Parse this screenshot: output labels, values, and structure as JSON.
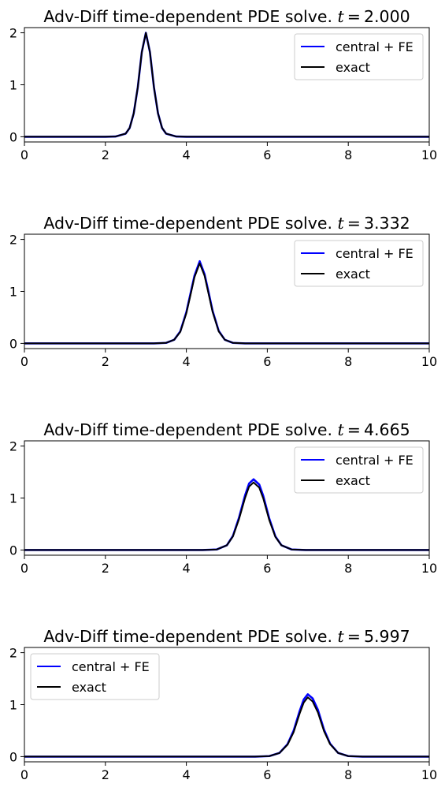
{
  "colors": {
    "numerical": "#0000ff",
    "exact": "#000000",
    "background": "#ffffff",
    "legend_border": "#cccccc"
  },
  "chart_data": [
    {
      "type": "line",
      "title": "Adv-Diff time-dependent PDE solve. t = 2.000",
      "title_prefix": "Adv-Diff time-dependent PDE solve.",
      "title_var": "t",
      "title_eq": "=",
      "title_value": "2.000",
      "xlim": [
        0,
        10
      ],
      "ylim": [
        -0.1,
        2.1
      ],
      "xticks": [
        0,
        2,
        4,
        6,
        8,
        10
      ],
      "xtick_labels": [
        "0",
        "2",
        "4",
        "6",
        "8",
        "10"
      ],
      "yticks": [
        0,
        1,
        2
      ],
      "ytick_labels": [
        "0",
        "1",
        "2"
      ],
      "legend_position": "upper right",
      "series": [
        {
          "name": "central + FE",
          "color": "#0000ff",
          "x": [
            0,
            2.0,
            2.25,
            2.5,
            2.6,
            2.7,
            2.8,
            2.9,
            3.0,
            3.1,
            3.2,
            3.3,
            3.4,
            3.5,
            3.75,
            4.0,
            10
          ],
          "y": [
            0,
            0.0,
            0.005,
            0.06,
            0.17,
            0.45,
            0.95,
            1.63,
            2.0,
            1.63,
            0.95,
            0.45,
            0.17,
            0.06,
            0.005,
            0.0,
            0
          ]
        },
        {
          "name": "exact",
          "color": "#000000",
          "x": [
            0,
            2.0,
            2.25,
            2.5,
            2.6,
            2.7,
            2.8,
            2.9,
            3.0,
            3.1,
            3.2,
            3.3,
            3.4,
            3.5,
            3.75,
            4.0,
            10
          ],
          "y": [
            0,
            0.0,
            0.005,
            0.06,
            0.17,
            0.45,
            0.95,
            1.63,
            2.0,
            1.63,
            0.95,
            0.45,
            0.17,
            0.06,
            0.005,
            0.0,
            0
          ]
        }
      ]
    },
    {
      "type": "line",
      "title": "Adv-Diff time-dependent PDE solve. t = 3.332",
      "title_prefix": "Adv-Diff time-dependent PDE solve.",
      "title_var": "t",
      "title_eq": "=",
      "title_value": "3.332",
      "xlim": [
        0,
        10
      ],
      "ylim": [
        -0.1,
        2.1
      ],
      "xticks": [
        0,
        2,
        4,
        6,
        8,
        10
      ],
      "xtick_labels": [
        "0",
        "2",
        "4",
        "6",
        "8",
        "10"
      ],
      "yticks": [
        0,
        1,
        2
      ],
      "ytick_labels": [
        "0",
        "1",
        "2"
      ],
      "legend_position": "upper right",
      "series": [
        {
          "name": "central + FE",
          "color": "#0000ff",
          "x": [
            0,
            3.2,
            3.5,
            3.7,
            3.85,
            4.0,
            4.1,
            4.2,
            4.33,
            4.45,
            4.55,
            4.65,
            4.8,
            4.95,
            5.15,
            5.45,
            10
          ],
          "y": [
            0,
            0.0,
            0.01,
            0.07,
            0.23,
            0.6,
            0.95,
            1.3,
            1.58,
            1.33,
            0.98,
            0.62,
            0.24,
            0.07,
            0.01,
            0.0,
            0
          ]
        },
        {
          "name": "exact",
          "color": "#000000",
          "x": [
            0,
            3.2,
            3.5,
            3.7,
            3.85,
            4.0,
            4.1,
            4.2,
            4.33,
            4.45,
            4.55,
            4.65,
            4.8,
            4.95,
            5.15,
            5.45,
            10
          ],
          "y": [
            0,
            0.0,
            0.01,
            0.07,
            0.22,
            0.58,
            0.92,
            1.27,
            1.54,
            1.3,
            0.95,
            0.6,
            0.23,
            0.07,
            0.01,
            0.0,
            0
          ]
        }
      ]
    },
    {
      "type": "line",
      "title": "Adv-Diff time-dependent PDE solve. t = 4.665",
      "title_prefix": "Adv-Diff time-dependent PDE solve.",
      "title_var": "t",
      "title_eq": "=",
      "title_value": "4.665",
      "xlim": [
        0,
        10
      ],
      "ylim": [
        -0.1,
        2.1
      ],
      "xticks": [
        0,
        2,
        4,
        6,
        8,
        10
      ],
      "xtick_labels": [
        "0",
        "2",
        "4",
        "6",
        "8",
        "10"
      ],
      "yticks": [
        0,
        1,
        2
      ],
      "ytick_labels": [
        "0",
        "1",
        "2"
      ],
      "legend_position": "upper right",
      "series": [
        {
          "name": "central + FE",
          "color": "#0000ff",
          "x": [
            0,
            4.4,
            4.75,
            5.0,
            5.15,
            5.3,
            5.45,
            5.55,
            5.66,
            5.8,
            5.9,
            6.05,
            6.2,
            6.35,
            6.6,
            6.95,
            10
          ],
          "y": [
            0,
            0.0,
            0.01,
            0.09,
            0.27,
            0.62,
            1.05,
            1.28,
            1.36,
            1.26,
            1.04,
            0.6,
            0.26,
            0.09,
            0.01,
            0.0,
            0
          ]
        },
        {
          "name": "exact",
          "color": "#000000",
          "x": [
            0,
            4.4,
            4.75,
            5.0,
            5.15,
            5.3,
            5.45,
            5.55,
            5.66,
            5.8,
            5.9,
            6.05,
            6.2,
            6.35,
            6.6,
            6.95,
            10
          ],
          "y": [
            0,
            0.0,
            0.01,
            0.09,
            0.26,
            0.59,
            1.0,
            1.22,
            1.3,
            1.2,
            0.99,
            0.57,
            0.25,
            0.09,
            0.01,
            0.0,
            0
          ]
        }
      ]
    },
    {
      "type": "line",
      "title": "Adv-Diff time-dependent PDE solve. t = 5.997",
      "title_prefix": "Adv-Diff time-dependent PDE solve.",
      "title_var": "t",
      "title_eq": "=",
      "title_value": "5.997",
      "xlim": [
        0,
        10
      ],
      "ylim": [
        -0.1,
        2.1
      ],
      "xticks": [
        0,
        2,
        4,
        6,
        8,
        10
      ],
      "xtick_labels": [
        "0",
        "2",
        "4",
        "6",
        "8",
        "10"
      ],
      "yticks": [
        0,
        1,
        2
      ],
      "ytick_labels": [
        "0",
        "1",
        "2"
      ],
      "legend_position": "upper left",
      "series": [
        {
          "name": "central + FE",
          "color": "#0000ff",
          "x": [
            0,
            5.7,
            6.05,
            6.3,
            6.5,
            6.65,
            6.8,
            6.9,
            7.0,
            7.12,
            7.25,
            7.4,
            7.55,
            7.75,
            8.0,
            8.35,
            10
          ],
          "y": [
            0,
            0.0,
            0.01,
            0.07,
            0.24,
            0.5,
            0.88,
            1.1,
            1.2,
            1.12,
            0.9,
            0.52,
            0.25,
            0.07,
            0.01,
            0.0,
            0
          ]
        },
        {
          "name": "exact",
          "color": "#000000",
          "x": [
            0,
            5.7,
            6.05,
            6.3,
            6.5,
            6.65,
            6.8,
            6.9,
            7.0,
            7.12,
            7.25,
            7.4,
            7.55,
            7.75,
            8.0,
            8.35,
            10
          ],
          "y": [
            0,
            0.0,
            0.01,
            0.07,
            0.23,
            0.47,
            0.83,
            1.04,
            1.14,
            1.06,
            0.85,
            0.49,
            0.24,
            0.07,
            0.01,
            0.0,
            0
          ]
        }
      ]
    }
  ]
}
